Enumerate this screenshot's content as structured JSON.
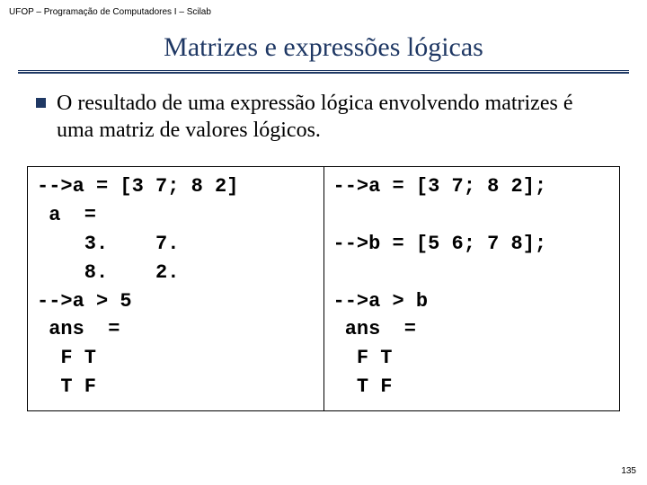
{
  "header": "UFOP – Programação de Computadores I – Scilab",
  "title": "Matrizes e expressões lógicas",
  "bullet": "O resultado de uma expressão lógica envolvendo matrizes é uma matriz de valores lógicos.",
  "code": {
    "left": "-->a = [3 7; 8 2]\n a  =\n    3.    7.\n    8.    2.\n-->a > 5\n ans  =\n  F T\n  T F",
    "right": "-->a = [3 7; 8 2];\n\n-->b = [5 6; 7 8];\n\n-->a > b\n ans  =\n  F T\n  T F"
  },
  "page_number": "135",
  "colors": {
    "title_color": "#1f3864",
    "bullet_color": "#1f3864",
    "text_color": "#000000",
    "border_color": "#000000",
    "background": "#ffffff"
  }
}
